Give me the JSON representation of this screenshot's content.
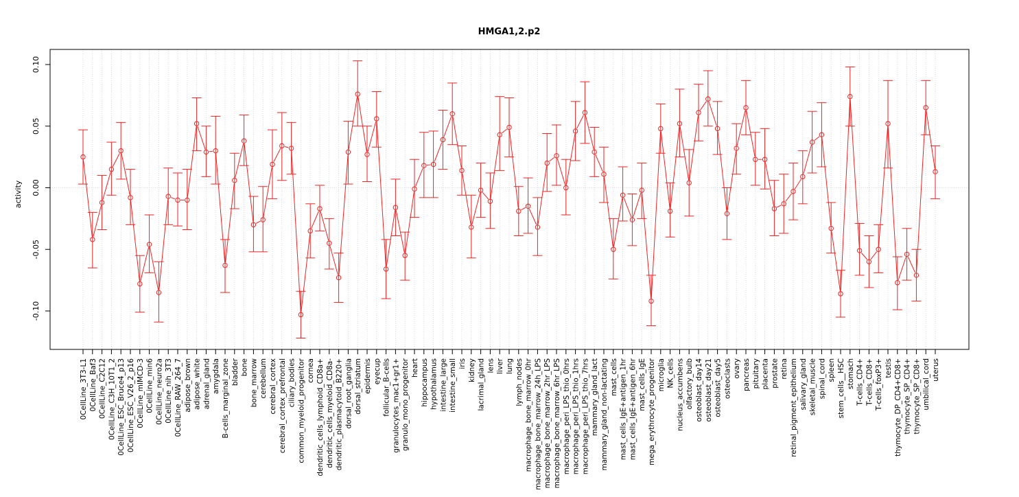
{
  "chart_data": {
    "type": "line",
    "title": "HMGA1,2.p2",
    "xlabel": "",
    "ylabel": "activity",
    "ylim": [
      -0.13,
      0.11
    ],
    "yticks": [
      -0.1,
      -0.05,
      0.0,
      0.05,
      0.1
    ],
    "ytick_labels": [
      "-0.10",
      "-0.05",
      "0.00",
      "0.05",
      "0.10"
    ],
    "grid": true,
    "legend": "none",
    "series_color": "#ee2222",
    "grid_color": "#cccccc",
    "categories": [
      "0CellLine_3T3-L1",
      "0CellLine_Baf3",
      "0CellLine_C2C12",
      "0CellLine_C3H_10T1_2",
      "0CellLine_ESC_Bruce4_p13",
      "0CellLine_ESC_V26_2_p16",
      "0CellLine_mIMCD-3",
      "0CellLine_min6",
      "0CellLine_neuro2a",
      "0CellLine_nih_3T3",
      "0CellLine_RAW_264_7",
      "adipose_brown",
      "adipose_white",
      "adrenal_gland",
      "amygdala",
      "B-cells_marginal_zone",
      "bladder",
      "bone",
      "bone_marrow",
      "cerebellum",
      "cerebral_cortex",
      "cerebral_cortex_prefrontal",
      "ciliary_bodies",
      "common_myeloid_progenitor",
      "cornea",
      "dendritic_cells_lymphoid_CD8a+",
      "dendritic_cells_myeloid_CD8a-",
      "dendritic_plasmacytoid_B220+",
      "dorsal_root_ganglia",
      "dorsal_striatum",
      "epidermis",
      "eyecup",
      "follicular_B-cells",
      "granulocytes_mac1+gr1+",
      "granulo_mono_progenitor",
      "heart",
      "hippocampus",
      "hypothalamus",
      "intestine_large",
      "intestine_small",
      "iris",
      "kidney",
      "lacrimal_gland",
      "lens",
      "liver",
      "lung",
      "lymph_nodes",
      "macrophage_bone_marrow_0hr",
      "macrophage_bone_marrow_24h_LPS",
      "macrophage_bone_marrow_2hr_LPS",
      "macrophage_bone_marrow_6hr_LPS",
      "macrophage_peri_LPS_thio_0hrs",
      "macrophage_peri_LPS_thio_1hrs",
      "macrophage_peri_LPS_thio_7hrs",
      "mammary_gland_lact",
      "mammary_gland_non-lactating",
      "mast_cells",
      "mast_cells_IgE+antigen_1hr",
      "mast_cells_IgE+antigen_6hr",
      "mast_cells_IgE",
      "mega_erythrocyte_progenitor",
      "microglia",
      "NK_cells",
      "nucleus_accumbens",
      "olfactory_bulb",
      "osteoblast_day14",
      "osteoblast_day21",
      "osteoblast_day5",
      "osteoclasts",
      "ovary",
      "pancreas",
      "pituitary",
      "placenta",
      "prostate",
      "retina",
      "retinal_pigment_epithelium",
      "salivary_gland",
      "skeletal_muscle",
      "spinal_cord",
      "spleen",
      "stem_cells__HSC",
      "stomach",
      "T-cells_CD4+",
      "T-cells_CD8+",
      "T-cells_foxP3+",
      "testis",
      "thymocyte_DP_CD4+CD8+",
      "thymocyte_SP_CD4+",
      "thymocyte_SP_CD8+",
      "umbilical_cord",
      "uterus"
    ],
    "values": [
      0.025,
      -0.042,
      -0.012,
      0.015,
      0.03,
      -0.008,
      -0.078,
      -0.046,
      -0.085,
      -0.007,
      -0.01,
      -0.01,
      0.052,
      0.029,
      0.03,
      -0.063,
      0.006,
      0.038,
      -0.03,
      -0.026,
      0.019,
      0.034,
      0.032,
      -0.103,
      -0.035,
      -0.017,
      -0.045,
      -0.073,
      0.029,
      0.076,
      0.027,
      0.056,
      -0.066,
      -0.016,
      -0.055,
      -0.001,
      0.018,
      0.019,
      0.039,
      0.06,
      0.014,
      -0.032,
      -0.002,
      -0.011,
      0.043,
      0.049,
      -0.019,
      -0.015,
      -0.032,
      0.02,
      0.026,
      0.0,
      0.046,
      0.061,
      0.029,
      0.011,
      -0.05,
      -0.006,
      -0.026,
      -0.002,
      -0.092,
      0.048,
      -0.019,
      0.052,
      0.004,
      0.061,
      0.072,
      0.048,
      -0.021,
      0.032,
      0.065,
      0.023,
      0.023,
      -0.017,
      -0.013,
      -0.003,
      0.009,
      0.037,
      0.043,
      -0.033,
      -0.086,
      0.074,
      -0.051,
      -0.06,
      -0.05,
      0.052,
      -0.077,
      -0.054,
      -0.071,
      0.065,
      0.013
    ],
    "lower": [
      0.003,
      -0.065,
      -0.034,
      -0.006,
      0.007,
      -0.03,
      -0.101,
      -0.069,
      -0.109,
      -0.03,
      -0.031,
      -0.034,
      0.03,
      0.009,
      0.003,
      -0.085,
      -0.017,
      0.018,
      -0.052,
      -0.052,
      -0.009,
      0.006,
      0.011,
      -0.122,
      -0.057,
      -0.035,
      -0.066,
      -0.093,
      0.003,
      0.05,
      0.005,
      0.033,
      -0.09,
      -0.039,
      -0.075,
      -0.024,
      -0.008,
      -0.008,
      0.015,
      0.035,
      -0.006,
      -0.057,
      -0.024,
      -0.033,
      0.014,
      0.025,
      -0.039,
      -0.037,
      -0.055,
      -0.003,
      0.002,
      -0.022,
      0.022,
      0.036,
      0.009,
      -0.012,
      -0.074,
      -0.027,
      -0.047,
      -0.025,
      -0.112,
      0.028,
      -0.04,
      0.025,
      -0.023,
      0.038,
      0.05,
      0.027,
      -0.042,
      0.011,
      0.043,
      0.002,
      -0.001,
      -0.039,
      -0.037,
      -0.026,
      -0.013,
      0.012,
      0.017,
      -0.053,
      -0.105,
      0.05,
      -0.071,
      -0.081,
      -0.069,
      0.016,
      -0.099,
      -0.075,
      -0.092,
      0.043,
      -0.009
    ],
    "upper": [
      0.047,
      -0.02,
      0.01,
      0.037,
      0.053,
      0.015,
      -0.055,
      -0.022,
      -0.06,
      0.016,
      0.012,
      0.015,
      0.073,
      0.05,
      0.058,
      -0.042,
      0.028,
      0.059,
      -0.007,
      0.001,
      0.047,
      0.061,
      0.053,
      -0.084,
      -0.013,
      0.002,
      -0.025,
      -0.053,
      0.054,
      0.103,
      0.05,
      0.078,
      -0.042,
      0.007,
      -0.036,
      0.023,
      0.045,
      0.046,
      0.063,
      0.085,
      0.034,
      -0.006,
      0.02,
      0.012,
      0.074,
      0.073,
      0.001,
      0.008,
      -0.008,
      0.044,
      0.051,
      0.023,
      0.07,
      0.086,
      0.049,
      0.033,
      -0.025,
      0.017,
      -0.005,
      0.02,
      -0.071,
      0.068,
      0.004,
      0.08,
      0.031,
      0.084,
      0.095,
      0.07,
      0.0,
      0.052,
      0.087,
      0.045,
      0.048,
      0.006,
      0.011,
      0.02,
      0.03,
      0.062,
      0.069,
      -0.012,
      -0.067,
      0.098,
      -0.029,
      -0.039,
      -0.03,
      0.087,
      -0.056,
      -0.033,
      -0.05,
      0.087,
      0.034
    ]
  }
}
